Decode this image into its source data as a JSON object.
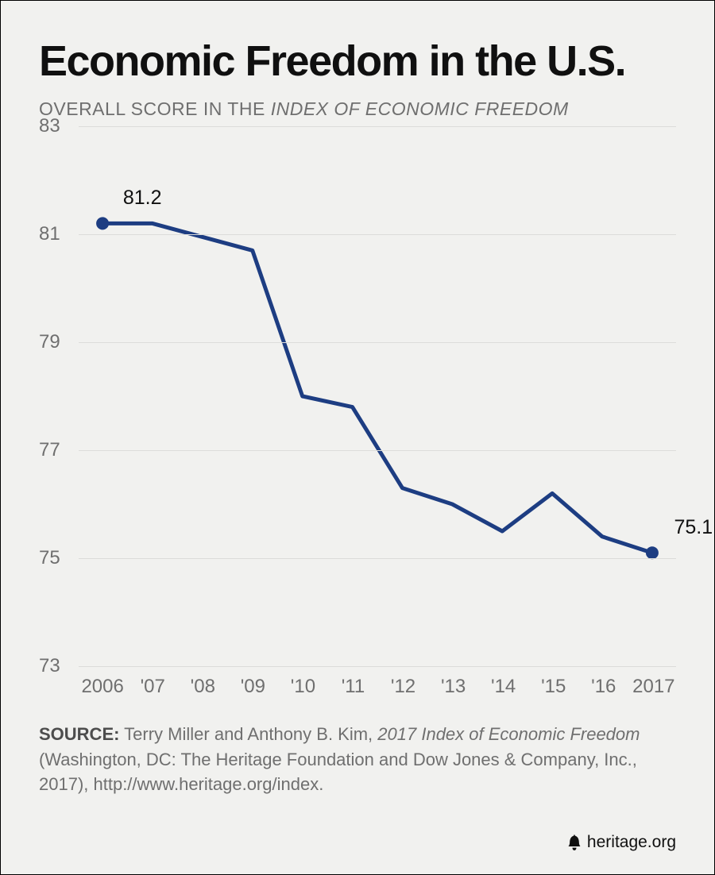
{
  "title": "Economic Freedom in the U.S.",
  "subtitle_plain": "OVERALL SCORE IN THE ",
  "subtitle_italic": "INDEX OF ECONOMIC FREEDOM",
  "chart": {
    "type": "line",
    "background_color": "#f1f1ef",
    "grid_color": "#dcdcda",
    "line_color": "#1d3d82",
    "line_width": 5,
    "marker_color": "#1d3d82",
    "marker_radius": 8,
    "axis_label_color": "#6f6f6f",
    "axis_fontsize": 24,
    "point_label_color": "#101010",
    "point_label_fontsize": 25,
    "ylim": [
      73,
      83
    ],
    "ytick_step": 2,
    "yticks": [
      73,
      75,
      77,
      79,
      81,
      83
    ],
    "x_labels": [
      "2006",
      "'07",
      "'08",
      "'09",
      "'10",
      "'11",
      "'12",
      "'13",
      "'14",
      "'15",
      "'16",
      "'17"
    ],
    "x_first_full": "2006",
    "x_last_full": "2017",
    "values": [
      81.2,
      81.2,
      80.95,
      80.7,
      78.0,
      77.8,
      76.3,
      76.0,
      75.5,
      76.2,
      75.4,
      75.1
    ],
    "first_label": "81.2",
    "last_label": "75.1",
    "marker_indices": [
      0,
      11
    ]
  },
  "source": {
    "label": "SOURCE:",
    "text_before_italic": " Terry Miller and Anthony B. Kim, ",
    "italic_text": "2017 Index of Economic Freedom",
    "text_after_italic": " (Washington, DC: The Heritage Foundation and Dow Jones & Company, Inc., 2017), http://www.heritage.org/index."
  },
  "footer_brand": "heritage.org"
}
